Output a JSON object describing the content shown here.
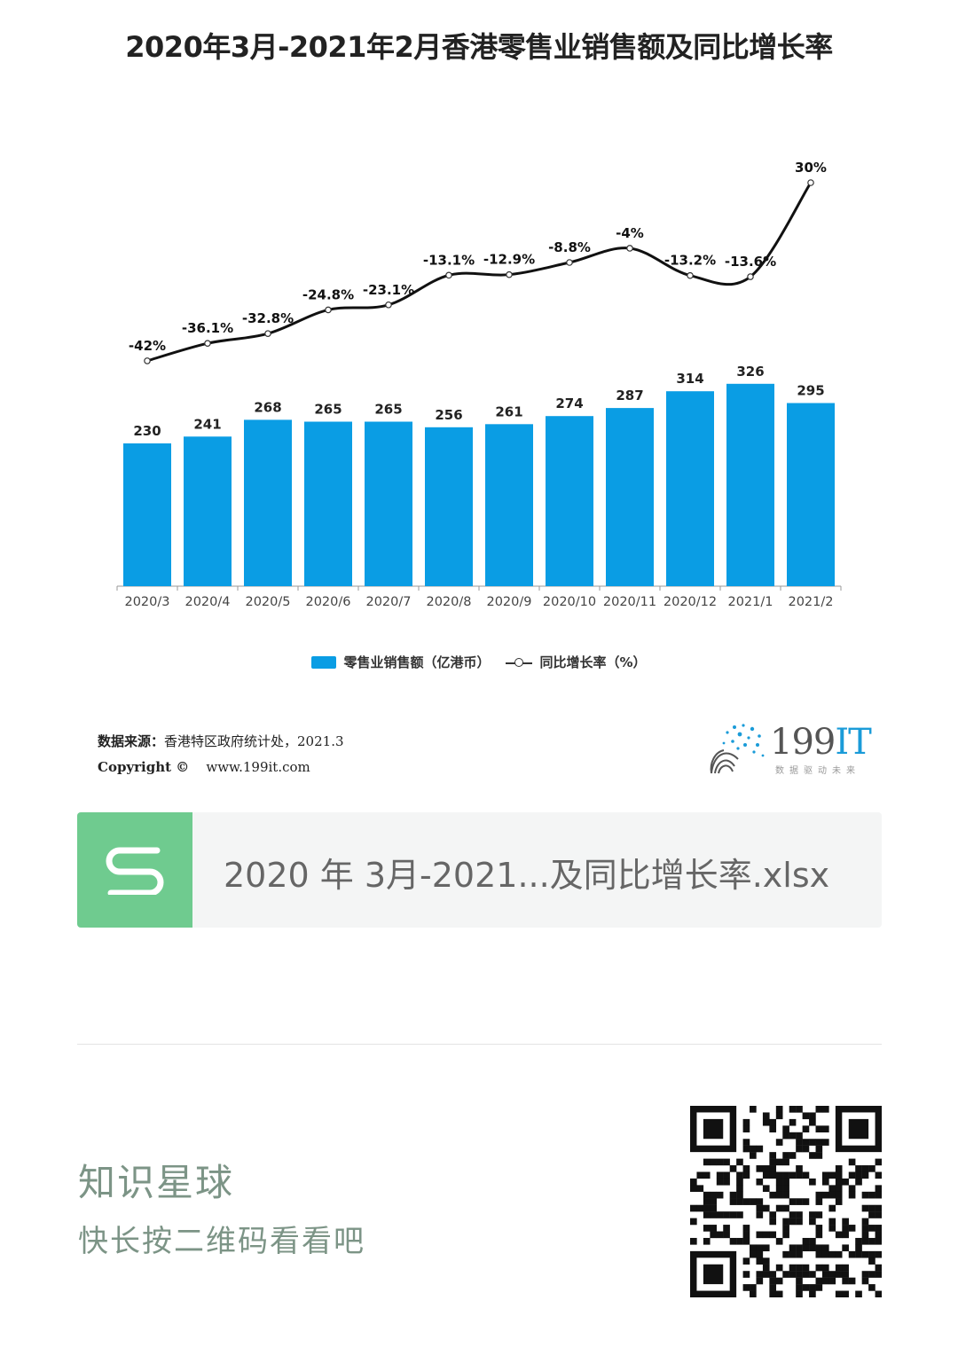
{
  "chart_data": {
    "type": "bar",
    "title": "2020年3月-2021年2月香港零售业销售额及同比增长率",
    "categories": [
      "2020/3",
      "2020/4",
      "2020/5",
      "2020/6",
      "2020/7",
      "2020/8",
      "2020/9",
      "2020/10",
      "2020/11",
      "2020/12",
      "2021/1",
      "2021/2"
    ],
    "series": [
      {
        "name": "零售业销售额（亿港币）",
        "type": "bar",
        "values": [
          230,
          241,
          268,
          265,
          265,
          256,
          261,
          274,
          287,
          314,
          326,
          295
        ],
        "labels": [
          "230",
          "241",
          "268",
          "265",
          "265",
          "256",
          "261",
          "274",
          "287",
          "314",
          "326",
          "295"
        ],
        "color": "#0a9de4"
      },
      {
        "name": "同比增长率（%）",
        "type": "line",
        "values": [
          -42,
          -36.1,
          -32.8,
          -24.8,
          -23.1,
          -13.1,
          -12.9,
          -8.8,
          -4,
          -13.2,
          -13.6,
          30
        ],
        "labels": [
          "-42%",
          "-36.1%",
          "-32.8%",
          "-24.8%",
          "-23.1%",
          "-13.1%",
          "-12.9%",
          "-8.8%",
          "-4%",
          "-13.2%",
          "-13.6%",
          "30%"
        ],
        "color": "#111111"
      }
    ],
    "legend_position": "bottom",
    "grid": false
  },
  "legend": {
    "bar_label": "零售业销售额（亿港币）",
    "line_label": "同比增长率（%）"
  },
  "footer": {
    "source_label": "数据来源：",
    "source_text": "香港特区政府统计处，2021.3",
    "copyright_label": "Copyright ©",
    "copyright_url": "www.199it.com",
    "brand_name": "199",
    "brand_suffix": "IT",
    "brand_tagline": "数据驱动未来"
  },
  "file": {
    "icon_letter": "S",
    "name": "2020 年 3月-2021...及同比增长率.xlsx"
  },
  "planet": {
    "title": "知识星球",
    "subtitle": "快长按二维码看看吧"
  },
  "colors": {
    "bar": "#0a9de4",
    "file_icon": "#6fcb8f",
    "planet_text": "#7c9486"
  }
}
